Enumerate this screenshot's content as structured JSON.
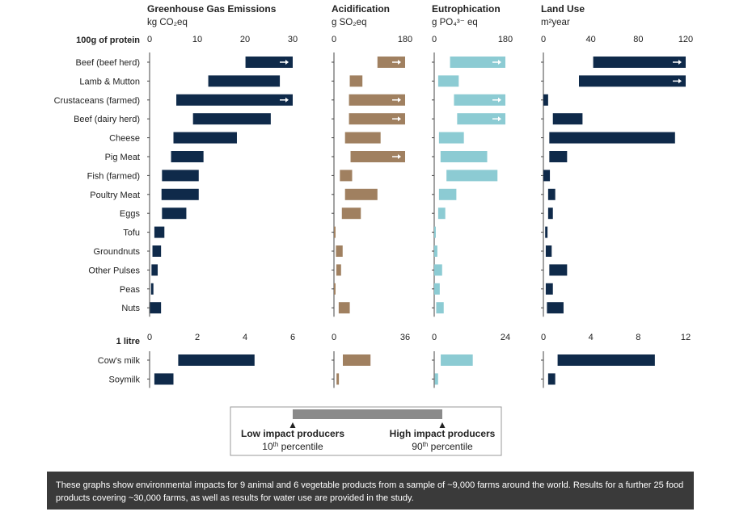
{
  "chart_data": {
    "type": "bar",
    "subtype": "range-bar",
    "colors": {
      "Greenhouse Gas Emissions": "#0f2a4a",
      "Acidification": "#a08060",
      "Eutrophication": "#8ccbd3",
      "Land Use": "#0f2a4a",
      "legend": "#8a8a8a"
    },
    "groups": [
      {
        "label": "100g of protein",
        "categories": [
          "Beef (beef herd)",
          "Lamb & Mutton",
          "Crustaceans (farmed)",
          "Beef (dairy herd)",
          "Cheese",
          "Pig Meat",
          "Fish (farmed)",
          "Poultry Meat",
          "Eggs",
          "Tofu",
          "Groundnuts",
          "Other Pulses",
          "Peas",
          "Nuts"
        ]
      },
      {
        "label": "1 litre",
        "categories": [
          "Cow's milk",
          "Soymilk"
        ]
      }
    ],
    "panels": [
      {
        "title": "Greenhouse Gas Emissions",
        "unit": "kg CO₂eq",
        "axes": [
          {
            "ticks": [
              "0",
              "10",
              "20",
              "30"
            ],
            "xlim": [
              0,
              30
            ]
          },
          {
            "ticks": [
              "0",
              "2",
              "4",
              "6"
            ],
            "xlim": [
              0,
              6
            ]
          }
        ],
        "series": [
          {
            "name": "100g of protein",
            "low": [
              20.1,
              12.3,
              5.6,
              9.1,
              5.0,
              4.5,
              2.6,
              2.5,
              2.6,
              1.0,
              0.6,
              0.4,
              0.3,
              0.1
            ],
            "high": [
              30,
              27.3,
              30,
              25.4,
              18.3,
              11.3,
              10.3,
              10.3,
              7.7,
              3.1,
              2.4,
              1.7,
              0.8,
              2.4
            ],
            "exceeds": [
              true,
              false,
              true,
              false,
              false,
              false,
              false,
              false,
              false,
              false,
              false,
              false,
              false,
              false
            ]
          },
          {
            "name": "1 litre",
            "low": [
              1.2,
              0.2
            ],
            "high": [
              4.4,
              1.0
            ],
            "exceeds": [
              false,
              false
            ]
          }
        ]
      },
      {
        "title": "Acidification",
        "unit": "g SO₂eq",
        "axes": [
          {
            "ticks": [
              "0",
              "180"
            ],
            "xlim": [
              0,
              180
            ]
          },
          {
            "ticks": [
              "0",
              "36"
            ],
            "xlim": [
              0,
              36
            ]
          }
        ],
        "series": [
          {
            "name": "100g of protein",
            "low": [
              110,
              40,
              38,
              38,
              28,
              42,
              15,
              28,
              20,
              0,
              5,
              6,
              0,
              12
            ],
            "high": [
              180,
              72,
              180,
              180,
              118,
              180,
              46,
              110,
              68,
              4,
              22,
              18,
              4,
              40
            ],
            "exceeds": [
              true,
              false,
              true,
              true,
              false,
              true,
              false,
              false,
              false,
              false,
              false,
              false,
              false,
              false
            ]
          },
          {
            "name": "1 litre",
            "low": [
              4.5,
              1.3
            ],
            "high": [
              18.5,
              2.5
            ],
            "exceeds": [
              false,
              false
            ]
          }
        ]
      },
      {
        "title": "Eutrophication",
        "unit": "g PO₄³⁻ eq",
        "axes": [
          {
            "ticks": [
              "0",
              "180"
            ],
            "xlim": [
              0,
              180
            ]
          },
          {
            "ticks": [
              "0",
              "24"
            ],
            "xlim": [
              0,
              24
            ]
          }
        ],
        "series": [
          {
            "name": "100g of protein",
            "low": [
              40,
              10,
              50,
              58,
              12,
              16,
              31,
              12,
              10,
              0,
              0,
              0,
              0,
              5
            ],
            "high": [
              180,
              62,
              180,
              180,
              75,
              134,
              160,
              56,
              28,
              4,
              8,
              20,
              14,
              24
            ],
            "exceeds": [
              true,
              false,
              true,
              true,
              false,
              false,
              false,
              false,
              false,
              false,
              false,
              false,
              false,
              false
            ]
          },
          {
            "name": "1 litre",
            "low": [
              2.2,
              0.2
            ],
            "high": [
              13.0,
              1.3
            ],
            "exceeds": [
              false,
              false
            ]
          }
        ]
      },
      {
        "title": "Land Use",
        "unit": "m²year",
        "axes": [
          {
            "ticks": [
              "0",
              "40",
              "80",
              "120"
            ],
            "xlim": [
              0,
              120
            ]
          },
          {
            "ticks": [
              "0",
              "4",
              "8",
              "12"
            ],
            "xlim": [
              0,
              12
            ]
          }
        ],
        "series": [
          {
            "name": "100g of protein",
            "low": [
              42,
              30,
              0,
              8,
              5,
              5,
              0,
              4,
              4,
              1.5,
              2,
              5,
              2,
              3
            ],
            "high": [
              120,
              120,
              4,
              33,
              111,
              20,
              5.5,
              10,
              8,
              3.5,
              7,
              20,
              8,
              17
            ],
            "exceeds": [
              true,
              true,
              false,
              false,
              false,
              false,
              false,
              false,
              false,
              false,
              false,
              false,
              false,
              false
            ]
          },
          {
            "name": "1 litre",
            "low": [
              1.2,
              0.4
            ],
            "high": [
              9.4,
              1.0
            ],
            "exceeds": [
              false,
              false
            ]
          }
        ]
      }
    ],
    "legend": {
      "low_label": "Low impact producers",
      "low_sub": "10",
      "low_sup": "th",
      "low_sub2": " percentile",
      "high_label": "High impact producers",
      "high_sub": "90",
      "high_sup": "th",
      "high_sub2": " percentile"
    }
  },
  "caption": "These graphs show environmental impacts for 9 animal and 6 vegetable products from a sample of ~9,000 farms around the world. Results for a further 25 food products covering ~30,000 farms, as well as results for water use are provided in the study."
}
